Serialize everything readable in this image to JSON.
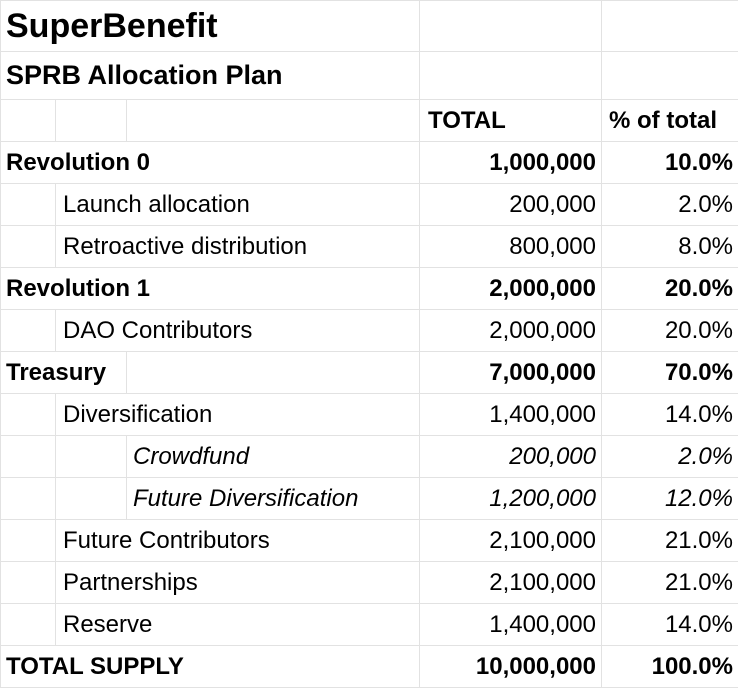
{
  "title": "SuperBenefit",
  "subtitle": "SPRB Allocation Plan",
  "headers": {
    "total": "TOTAL",
    "pct": "% of total"
  },
  "rows": [
    {
      "label": "Revolution 0",
      "total": "1,000,000",
      "pct": "10.0%"
    },
    {
      "label": "Launch allocation",
      "total": "200,000",
      "pct": "2.0%"
    },
    {
      "label": "Retroactive distribution",
      "total": "800,000",
      "pct": "8.0%"
    },
    {
      "label": "Revolution 1",
      "total": "2,000,000",
      "pct": "20.0%"
    },
    {
      "label": "DAO Contributors",
      "total": "2,000,000",
      "pct": "20.0%"
    },
    {
      "label": "Treasury",
      "total": "7,000,000",
      "pct": "70.0%"
    },
    {
      "label": "Diversification",
      "total": "1,400,000",
      "pct": "14.0%"
    },
    {
      "label": "Crowdfund",
      "total": "200,000",
      "pct": "2.0%"
    },
    {
      "label": "Future Diversification",
      "total": "1,200,000",
      "pct": "12.0%"
    },
    {
      "label": "Future Contributors",
      "total": "2,100,000",
      "pct": "21.0%"
    },
    {
      "label": "Partnerships",
      "total": "2,100,000",
      "pct": "21.0%"
    },
    {
      "label": "Reserve",
      "total": "1,400,000",
      "pct": "14.0%"
    },
    {
      "label": "TOTAL SUPPLY",
      "total": "10,000,000",
      "pct": "100.0%"
    }
  ]
}
